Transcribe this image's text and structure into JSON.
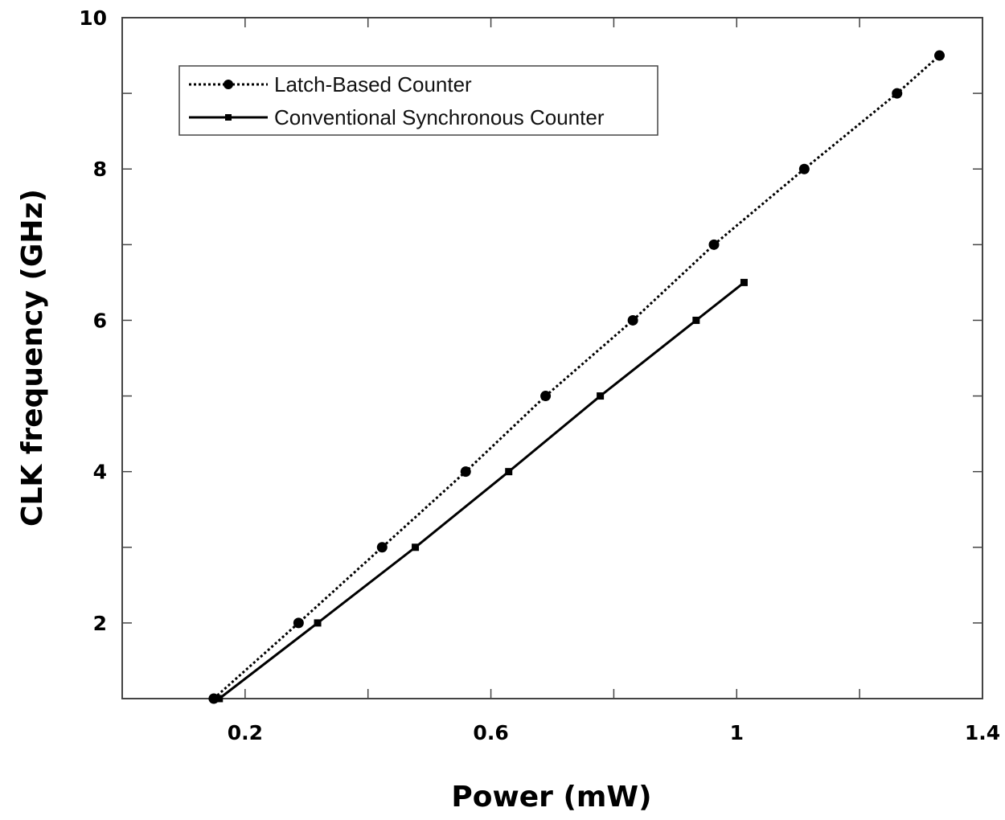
{
  "chart_data": {
    "type": "line",
    "title": "",
    "xlabel": "Power (mW)",
    "ylabel": "CLK frequency (GHz)",
    "xlim": [
      0,
      1.4
    ],
    "ylim": [
      1,
      10
    ],
    "x_ticks": [
      0.2,
      0.6,
      1,
      1.4
    ],
    "x_tick_labels": [
      "0.2",
      "0.6",
      "1",
      "1.4"
    ],
    "x_minor_ticks": [
      0.4,
      0.8,
      1.2
    ],
    "y_ticks": [
      2,
      4,
      6,
      8,
      10
    ],
    "y_tick_labels": [
      "2",
      "4",
      "6",
      "8",
      "10"
    ],
    "y_minor_ticks": [
      3,
      5,
      7,
      9
    ],
    "grid": false,
    "legend_position": "top-left",
    "series": [
      {
        "name": "Latch-Based Counter",
        "line_style": "dotted",
        "marker": "circle",
        "x": [
          0.149,
          0.287,
          0.423,
          0.559,
          0.689,
          0.831,
          0.963,
          1.11,
          1.261,
          1.33
        ],
        "y": [
          1,
          2,
          3,
          4,
          5,
          6,
          7,
          8,
          9,
          9.5
        ]
      },
      {
        "name": "Conventional Synchronous Counter",
        "line_style": "solid",
        "marker": "square",
        "x": [
          0.158,
          0.318,
          0.477,
          0.629,
          0.778,
          0.934,
          1.012
        ],
        "y": [
          1,
          2,
          3,
          4,
          5,
          6,
          6.5
        ]
      }
    ]
  }
}
